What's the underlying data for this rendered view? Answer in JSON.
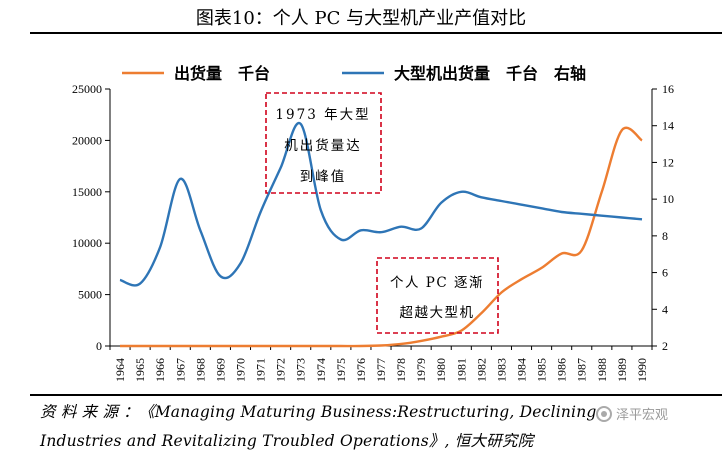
{
  "figure": {
    "title": "图表10：个人 PC 与大型机产业产值对比",
    "source_line1": "资 料 来 源 ：《Managing  Maturing  Business:Restructuring, Declining",
    "source_line2": "Industries and Revitalizing Troubled Operations》, 恒大研究院",
    "watermark": "泽平宏观"
  },
  "chart_data": {
    "type": "line",
    "categories": [
      "1964",
      "1965",
      "1966",
      "1967",
      "1968",
      "1969",
      "1970",
      "1971",
      "1972",
      "1973",
      "1974",
      "1975",
      "1976",
      "1977",
      "1978",
      "1979",
      "1980",
      "1981",
      "1982",
      "1983",
      "1984",
      "1985",
      "1986",
      "1987",
      "1988",
      "1989",
      "1990"
    ],
    "series": [
      {
        "name": "出货量　千台",
        "axis": "left",
        "color": "#ED7D31",
        "values": [
          0,
          0,
          0,
          0,
          0,
          0,
          0,
          0,
          0,
          0,
          0,
          0,
          0,
          50,
          200,
          500,
          900,
          1500,
          3200,
          5200,
          6500,
          7600,
          9000,
          9300,
          15000,
          21000,
          20000
        ]
      },
      {
        "name": "大型机出货量　千台　右轴",
        "axis": "right",
        "color": "#2E75B6",
        "values": [
          5.6,
          5.4,
          7.4,
          11.1,
          8.3,
          5.8,
          6.5,
          9.3,
          11.7,
          14.1,
          9.4,
          7.8,
          8.3,
          8.2,
          8.5,
          8.4,
          9.8,
          10.4,
          10.1,
          9.9,
          9.7,
          9.5,
          9.3,
          9.2,
          9.1,
          9.0,
          8.9
        ]
      }
    ],
    "y_left": {
      "min": 0,
      "max": 25000,
      "step": 5000,
      "ticks": [
        "0",
        "5000",
        "10000",
        "15000",
        "20000",
        "25000"
      ]
    },
    "y_right": {
      "min": 2,
      "max": 16,
      "step": 2,
      "ticks": [
        "2",
        "4",
        "6",
        "8",
        "10",
        "12",
        "14",
        "16"
      ]
    },
    "legend_position": "top",
    "grid": false,
    "annotations": [
      {
        "lines": [
          "1973 年大型",
          "机出货量达",
          "到峰值"
        ]
      },
      {
        "lines": [
          "个人 PC 逐渐",
          "超越大型机"
        ]
      }
    ]
  }
}
